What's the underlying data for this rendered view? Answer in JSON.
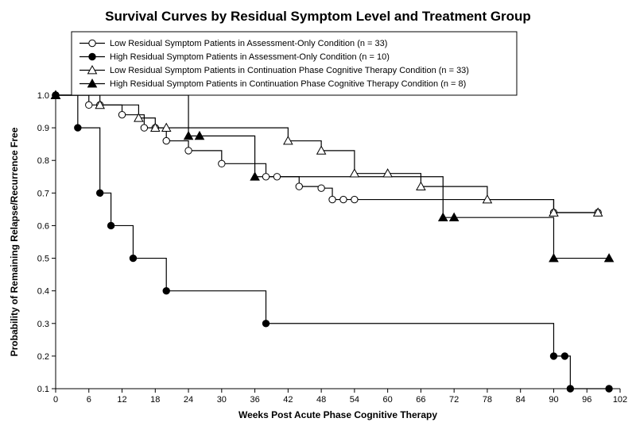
{
  "chart": {
    "type": "line",
    "title": "Survival Curves by Residual Symptom Level and Treatment Group",
    "title_fontsize": 17,
    "title_fontweight": "bold",
    "xlabel": "Weeks Post Acute Phase Cognitive Therapy",
    "ylabel": "Probability of Remaining Relapse/Recurrence Free",
    "label_fontsize": 12,
    "label_fontweight": "bold",
    "tick_fontsize": 11,
    "background_color": "#ffffff",
    "axis_color": "#000000",
    "line_color": "#000000",
    "line_width": 1.2,
    "marker_size": 4.2,
    "xlim": [
      0,
      102
    ],
    "ylim": [
      0.1,
      1.0
    ],
    "xtick_step": 6,
    "ytick_step": 0.1,
    "legend": {
      "border_color": "#000000",
      "background": "#ffffff",
      "fontsize": 11,
      "items": [
        "Low Residual Symptom Patients in Assessment-Only Condition (n = 33)",
        "High Residual Symptom Patients in Assessment-Only Condition (n = 10)",
        "Low Residual Symptom Patients in Continuation Phase Cognitive Therapy Condition (n = 33)",
        "High Residual Symptom Patients in Continuation Phase Cognitive Therapy Condition (n = 8)"
      ]
    },
    "series": [
      {
        "name": "low-assessment",
        "marker": "circle-open",
        "points": [
          [
            0,
            1.0
          ],
          [
            6,
            0.97
          ],
          [
            8,
            0.97
          ],
          [
            12,
            0.94
          ],
          [
            16,
            0.9
          ],
          [
            18,
            0.9
          ],
          [
            20,
            0.86
          ],
          [
            24,
            0.83
          ],
          [
            30,
            0.79
          ],
          [
            38,
            0.75
          ],
          [
            40,
            0.75
          ],
          [
            44,
            0.72
          ],
          [
            48,
            0.715
          ],
          [
            50,
            0.68
          ],
          [
            52,
            0.68
          ],
          [
            54,
            0.68
          ],
          [
            90,
            0.64
          ],
          [
            98,
            0.64
          ]
        ]
      },
      {
        "name": "high-assessment",
        "marker": "circle-filled",
        "points": [
          [
            0,
            1.0
          ],
          [
            4,
            0.9
          ],
          [
            8,
            0.7
          ],
          [
            10,
            0.6
          ],
          [
            14,
            0.5
          ],
          [
            20,
            0.4
          ],
          [
            38,
            0.3
          ],
          [
            90,
            0.2
          ],
          [
            92,
            0.2
          ],
          [
            93,
            0.1
          ],
          [
            100,
            0.1
          ]
        ]
      },
      {
        "name": "low-cpct",
        "marker": "triangle-open",
        "points": [
          [
            0,
            1.0
          ],
          [
            8,
            0.97
          ],
          [
            15,
            0.93
          ],
          [
            18,
            0.9
          ],
          [
            20,
            0.9
          ],
          [
            42,
            0.86
          ],
          [
            48,
            0.83
          ],
          [
            54,
            0.76
          ],
          [
            60,
            0.76
          ],
          [
            66,
            0.72
          ],
          [
            78,
            0.68
          ],
          [
            90,
            0.64
          ],
          [
            98,
            0.64
          ]
        ]
      },
      {
        "name": "high-cpct",
        "marker": "triangle-filled",
        "points": [
          [
            0,
            1.0
          ],
          [
            24,
            0.875
          ],
          [
            26,
            0.875
          ],
          [
            36,
            0.75
          ],
          [
            70,
            0.625
          ],
          [
            72,
            0.625
          ],
          [
            90,
            0.5
          ],
          [
            100,
            0.5
          ]
        ]
      }
    ]
  }
}
